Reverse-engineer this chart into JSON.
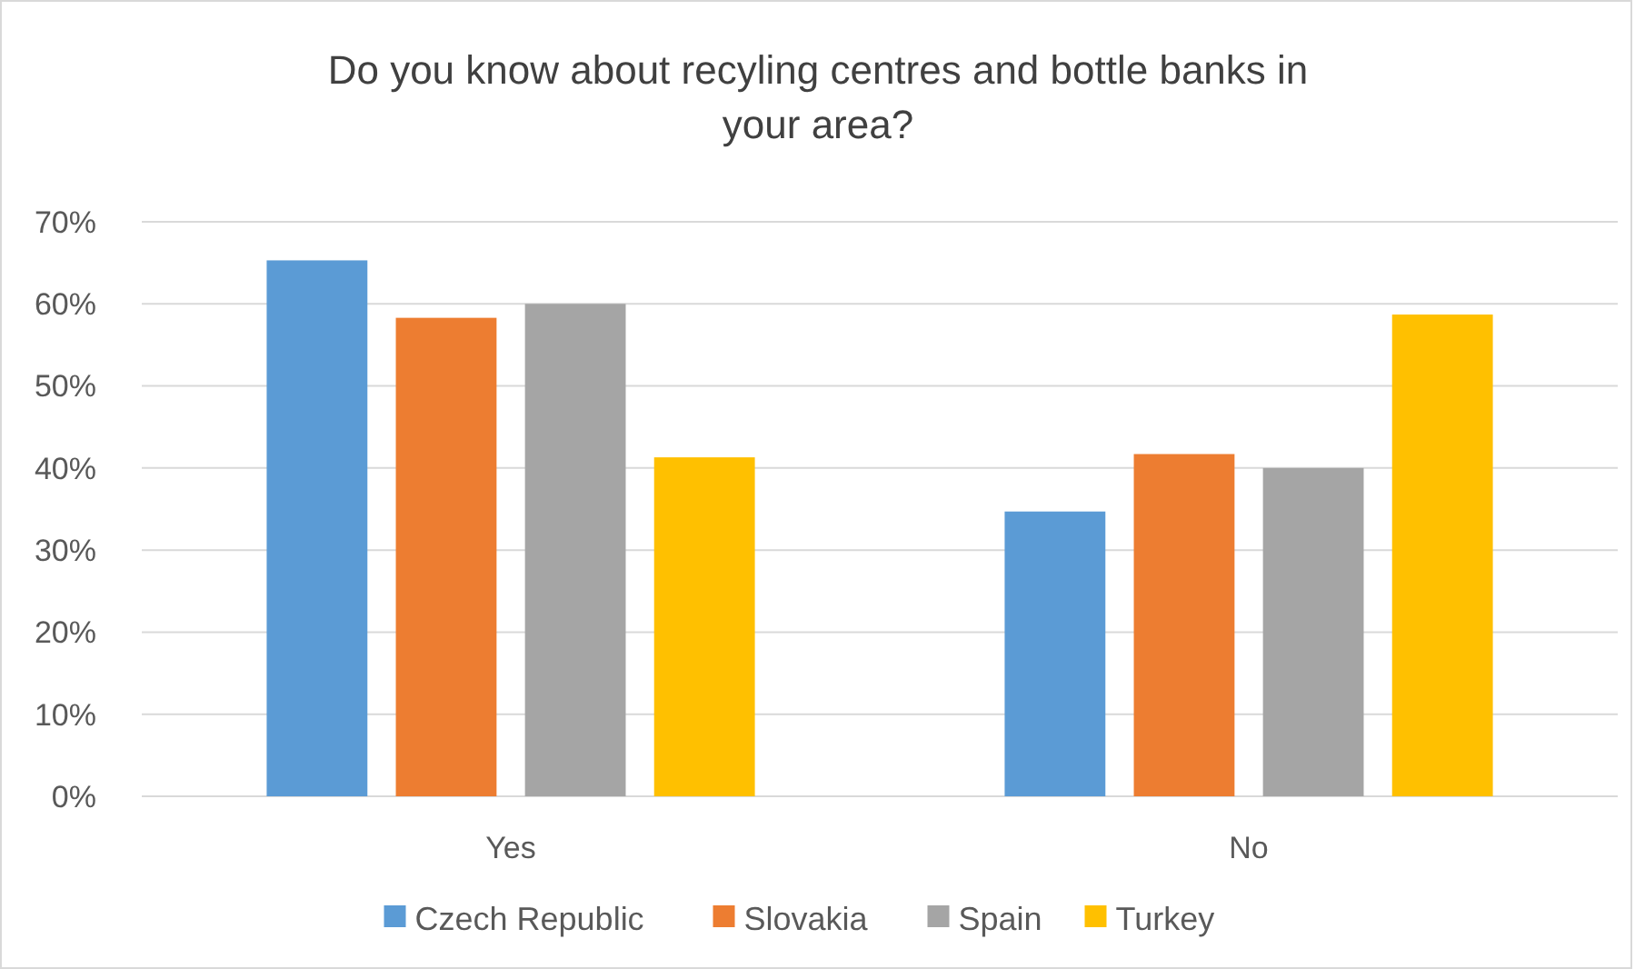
{
  "chart_data": {
    "type": "bar",
    "title": "Do you know about recyling centres and bottle banks in your area?",
    "categories": [
      "Yes",
      "No"
    ],
    "series": [
      {
        "name": "Czech Republic",
        "color": "#5b9bd5",
        "values": [
          65.3,
          34.7
        ]
      },
      {
        "name": "Slovakia",
        "color": "#ed7d31",
        "values": [
          58.3,
          41.7
        ]
      },
      {
        "name": "Spain",
        "color": "#a5a5a5",
        "values": [
          60,
          40
        ]
      },
      {
        "name": "Turkey",
        "color": "#ffc000",
        "values": [
          41.3,
          58.7
        ]
      }
    ],
    "ylim": [
      0,
      70
    ],
    "yticks": [
      {
        "value": 0,
        "label": "0%"
      },
      {
        "value": 10,
        "label": "10%"
      },
      {
        "value": 20,
        "label": "20%"
      },
      {
        "value": 30,
        "label": "30%"
      },
      {
        "value": 40,
        "label": "40%"
      },
      {
        "value": 50,
        "label": "50%"
      },
      {
        "value": 60,
        "label": "60%"
      },
      {
        "value": 70,
        "label": "70%"
      }
    ],
    "grid": "y",
    "legend": "bottom"
  }
}
